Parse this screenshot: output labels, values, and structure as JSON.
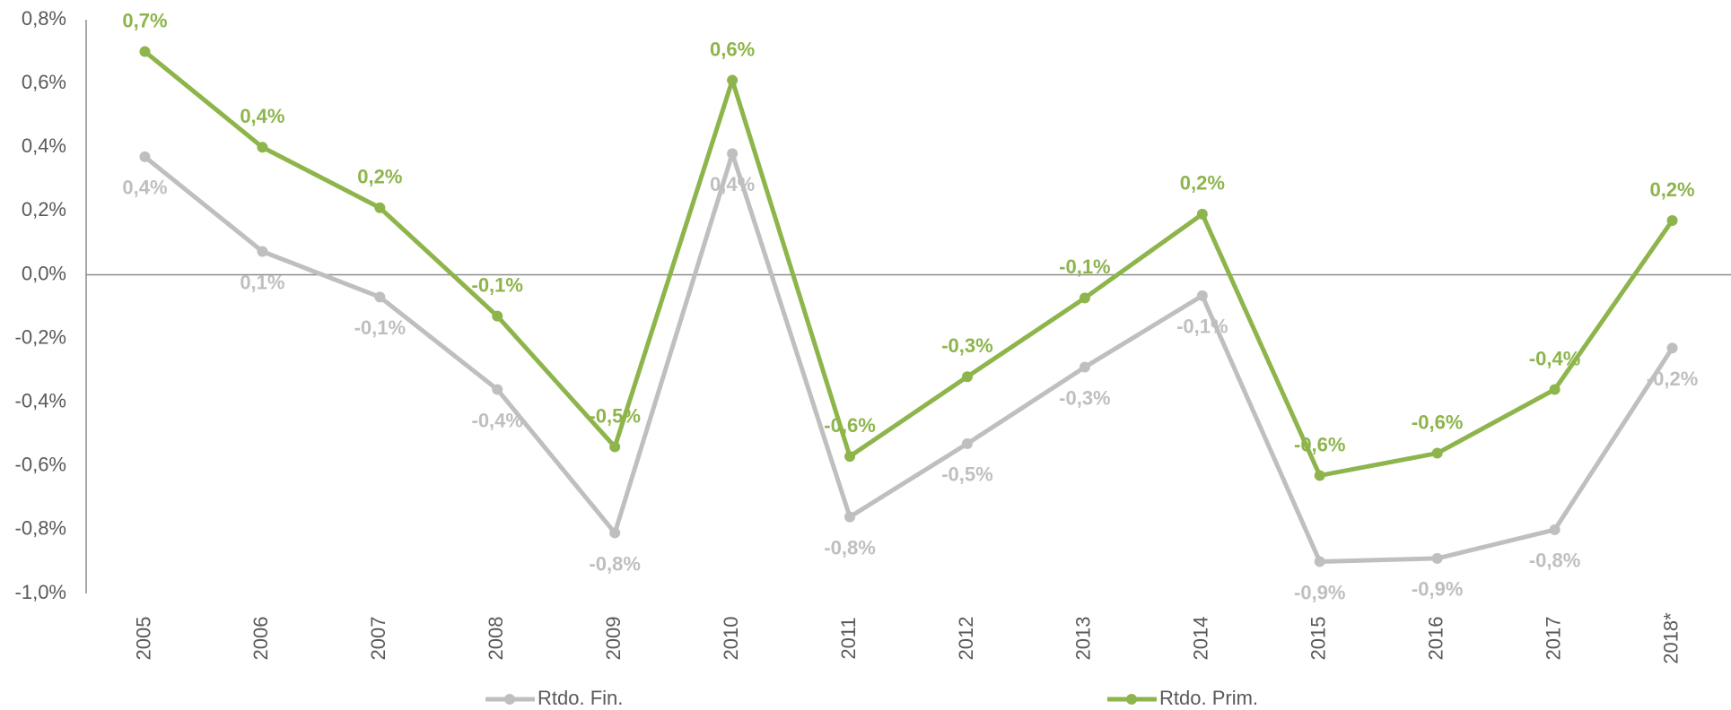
{
  "chart_data": {
    "type": "line",
    "categories": [
      "2005",
      "2006",
      "2007",
      "2008",
      "2009",
      "2010",
      "2011",
      "2012",
      "2013",
      "2014",
      "2015",
      "2016",
      "2017",
      "2018*"
    ],
    "series": [
      {
        "name": "Rtdo. Fin.",
        "color": "#bfbfbf",
        "values": [
          0.37,
          0.073,
          -0.07,
          -0.36,
          -0.81,
          0.38,
          -0.76,
          -0.53,
          -0.29,
          -0.066,
          -0.9,
          -0.89,
          -0.8,
          -0.23
        ],
        "value_labels": [
          "0,4%",
          "0,1%",
          "-0,1%",
          "-0,4%",
          "-0,8%",
          "0,4%",
          "-0,8%",
          "-0,5%",
          "-0,3%",
          "-0,1%",
          "-0,9%",
          "-0,9%",
          "-0,8%",
          "-0,2%"
        ]
      },
      {
        "name": "Rtdo. Prim.",
        "color": "#8db54b",
        "values": [
          0.7,
          0.4,
          0.21,
          -0.13,
          -0.54,
          0.61,
          -0.57,
          -0.32,
          -0.073,
          0.19,
          -0.63,
          -0.56,
          -0.36,
          0.17
        ],
        "value_labels": [
          "0,7%",
          "0,4%",
          "0,2%",
          "-0,1%",
          "-0,5%",
          "0,6%",
          "-0,6%",
          "-0,3%",
          "-0,1%",
          "0,2%",
          "-0,6%",
          "-0,6%",
          "-0,4%",
          "0,2%"
        ]
      }
    ],
    "ylim": [
      -1.0,
      0.8
    ],
    "yticks": [
      {
        "value": -1.0,
        "label": "-1,0%"
      },
      {
        "value": -0.8,
        "label": "-0,8%"
      },
      {
        "value": -0.6,
        "label": "-0,6%"
      },
      {
        "value": -0.4,
        "label": "-0,4%"
      },
      {
        "value": -0.2,
        "label": "-0,2%"
      },
      {
        "value": 0.0,
        "label": "0,0%"
      },
      {
        "value": 0.2,
        "label": "0,2%"
      },
      {
        "value": 0.4,
        "label": "0,4%"
      },
      {
        "value": 0.6,
        "label": "0,6%"
      },
      {
        "value": 0.8,
        "label": "0,8%"
      }
    ],
    "legend": "bottom"
  }
}
